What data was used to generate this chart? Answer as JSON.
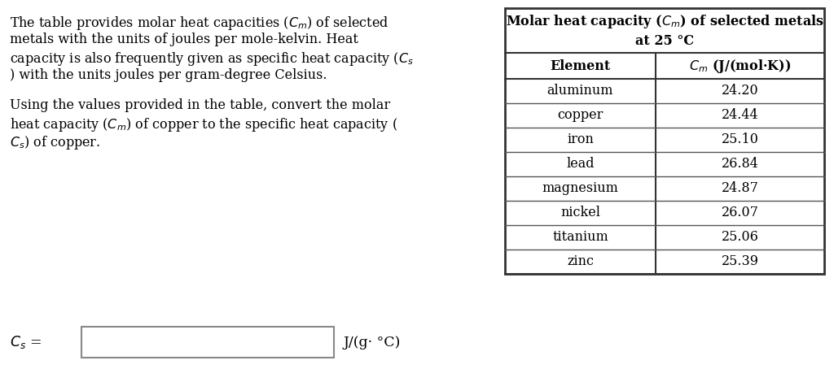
{
  "bg_color": "#ffffff",
  "left_text_blocks": [
    {
      "lines": [
        [
          "The table provides molar heat capacities (",
          "$C_m$",
          ") of selected"
        ],
        [
          "metals with the units of joules per mole-kelvin. Heat"
        ],
        [
          "capacity is also frequently given as specific heat capacity (",
          "$C_s$"
        ],
        [
          ") with the units joules per gram-degree Celsius."
        ]
      ]
    },
    {
      "lines": [
        [
          "Using the values provided in the table, convert the molar"
        ],
        [
          "heat capacity (",
          "$C_m$",
          ") of copper to the specific heat capacity ("
        ],
        [
          "$C_s$",
          ") of copper."
        ]
      ]
    }
  ],
  "table_title_line1": "Molar heat capacity ($C_m$) of selected metals",
  "table_title_line2": "at 25 °C",
  "table_col1_header": "Element",
  "table_col2_header": "$C_m$ (J/(mol·K))",
  "table_data": [
    [
      "aluminum",
      "24.20"
    ],
    [
      "copper",
      "24.44"
    ],
    [
      "iron",
      "25.10"
    ],
    [
      "lead",
      "26.84"
    ],
    [
      "magnesium",
      "24.87"
    ],
    [
      "nickel",
      "26.07"
    ],
    [
      "titanium",
      "25.06"
    ],
    [
      "zinc",
      "25.39"
    ]
  ],
  "bottom_label_plain": "C",
  "bottom_label_sub": "s",
  "bottom_units": "J/(g· °C)",
  "font_size": 11.5,
  "table_font_size": 11.5,
  "fig_width": 10.24,
  "fig_height": 4.7,
  "dpi": 100
}
